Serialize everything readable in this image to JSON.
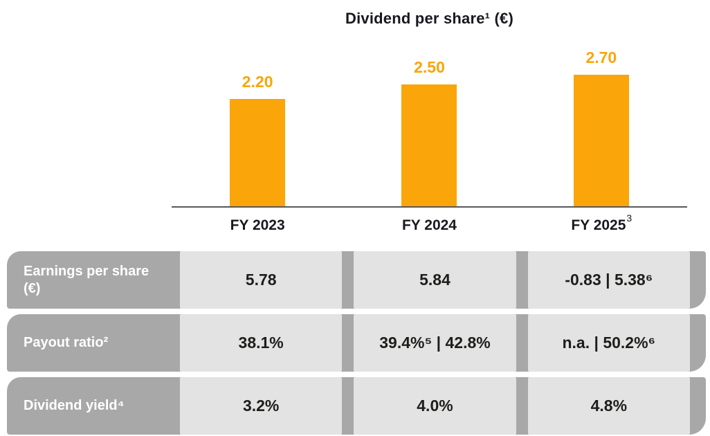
{
  "chart_data": {
    "type": "bar",
    "title": "Dividend per share¹ (€)",
    "categories": [
      "FY 2023",
      "FY 2024",
      "FY 2025"
    ],
    "category_notes": [
      "",
      "",
      "3"
    ],
    "values": [
      2.2,
      2.5,
      2.7
    ],
    "value_labels": [
      "2.20",
      "2.50",
      "2.70"
    ],
    "ylim": [
      0,
      3
    ],
    "grid": false,
    "legend": "none"
  },
  "table": {
    "rows": [
      {
        "label": "Earnings per share (€)",
        "values": [
          "5.78",
          "5.84",
          "-0.83 | 5.38⁶"
        ]
      },
      {
        "label": "Payout ratio²",
        "values": [
          "38.1%",
          "39.4%⁵ | 42.8%",
          "n.a. | 50.2%⁶"
        ]
      },
      {
        "label": "Dividend yield⁴",
        "values": [
          "3.2%",
          "4.0%",
          "4.8%"
        ]
      }
    ]
  },
  "colors": {
    "bar": "#FAA50A",
    "axis": "#58585A",
    "title_text": "#181820",
    "value_text": "#1D1D1B",
    "header_bg": "#A8A8A8",
    "cell_bg": "#E3E3E3",
    "header_text": "#FFFFFF"
  }
}
